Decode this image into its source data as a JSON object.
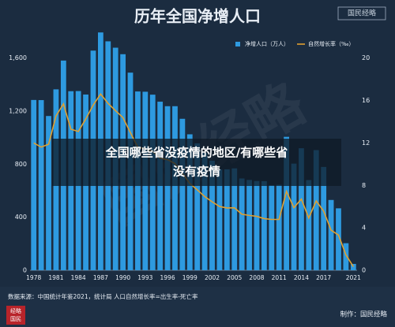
{
  "chart_data": {
    "type": "bar",
    "title": "历年全国净增人口",
    "categories": [
      "1978",
      null,
      null,
      "1981",
      null,
      null,
      "1984",
      null,
      null,
      "1987",
      null,
      null,
      "1990",
      null,
      null,
      "1993",
      null,
      null,
      "1996",
      null,
      null,
      "1999",
      null,
      null,
      "2002",
      null,
      null,
      "2005",
      null,
      null,
      "2008",
      null,
      null,
      "2011",
      null,
      null,
      "2014",
      null,
      null,
      "2017",
      null,
      null,
      null,
      "2021"
    ],
    "series": [
      {
        "name": "净增人口（万人）",
        "type": "bar",
        "color": "#2e9ae0",
        "values": [
          1284,
          1283,
          1163,
          1364,
          1581,
          1350,
          1351,
          1325,
          1656,
          1793,
          1726,
          1678,
          1629,
          1490,
          1348,
          1346,
          1324,
          1271,
          1237,
          1237,
          1142,
          1025,
          957,
          884,
          826,
          761,
          761,
          768,
          692,
          681,
          673,
          672,
          641,
          644,
          1006,
          804,
          920,
          680,
          906,
          779,
          530,
          467,
          204,
          48
        ]
      },
      {
        "name": "自然增长率（‰）",
        "type": "line",
        "axis": "y2",
        "color": "#e0a030",
        "values": [
          12.0,
          11.61,
          11.87,
          14.55,
          15.68,
          13.29,
          13.08,
          14.26,
          15.57,
          16.61,
          15.73,
          15.04,
          14.39,
          12.98,
          11.6,
          11.45,
          11.21,
          10.55,
          10.42,
          10.06,
          9.14,
          8.18,
          7.58,
          6.95,
          6.45,
          6.01,
          5.87,
          5.89,
          5.28,
          5.17,
          5.08,
          4.87,
          4.79,
          4.79,
          7.43,
          5.9,
          6.71,
          4.93,
          6.53,
          5.58,
          3.78,
          3.32,
          1.45,
          0.34
        ]
      }
    ],
    "ylim": [
      0,
      1800
    ],
    "yticks": [
      0,
      400,
      800,
      {
        "value": 1200,
        "label": "1,200"
      },
      {
        "value": 1600,
        "label": "1,600"
      }
    ],
    "y2lim": [
      0,
      22.5
    ],
    "y2ticks": [
      0,
      4,
      8,
      12,
      16,
      20
    ],
    "grid": false
  },
  "overlay_title": [
    "全国哪些省没疫情的地区/有哪些省",
    "没有疫情"
  ],
  "watermark": "国民经略",
  "source": "数据来源：中国统计年鉴2021，统计局  人口自然增长率=出生率-死亡率",
  "credit": "制作：国民经略",
  "logo": [
    "经略",
    "国民"
  ]
}
